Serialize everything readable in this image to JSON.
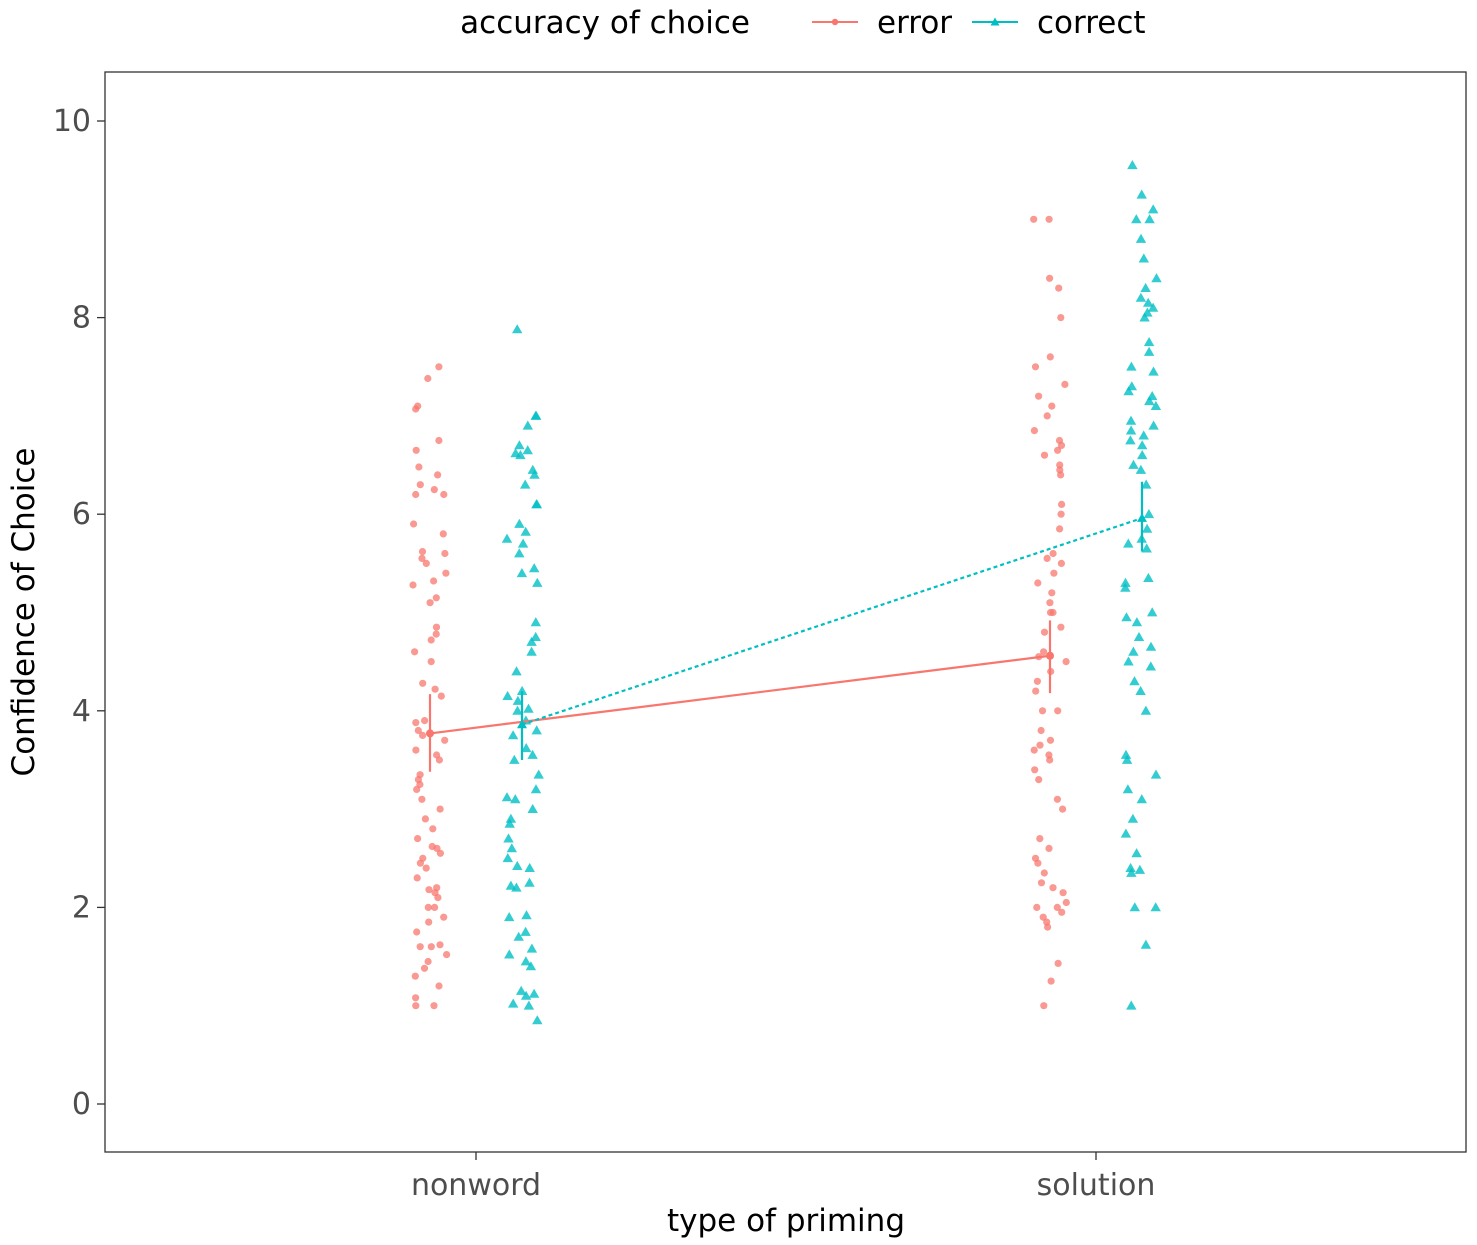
{
  "chart_data": {
    "type": "scatter",
    "xlabel": "type of priming",
    "ylabel": "Confidence of Choice",
    "categories": [
      "nonword",
      "solution"
    ],
    "ylim": [
      -0.35,
      10.5
    ],
    "yticks": [
      0,
      2,
      4,
      6,
      8,
      10
    ],
    "grid": false,
    "legend": {
      "title": "accuracy of choice",
      "placement": "top",
      "entries": [
        "error",
        "correct"
      ]
    },
    "series": [
      {
        "name": "error",
        "color": "#F8766D",
        "marker": "circle",
        "line_style": "solid",
        "means": [
          3.77,
          4.56
        ],
        "ci_low": [
          3.38,
          4.18
        ],
        "ci_high": [
          4.17,
          4.92
        ],
        "points": {
          "nonword": [
            1.0,
            1.0,
            1.08,
            1.2,
            1.3,
            1.38,
            1.45,
            1.52,
            1.6,
            1.6,
            1.62,
            1.75,
            1.85,
            1.9,
            2.0,
            2.0,
            2.1,
            2.15,
            2.18,
            2.2,
            2.3,
            2.4,
            2.45,
            2.5,
            2.55,
            2.6,
            2.62,
            2.7,
            2.8,
            2.9,
            3.0,
            3.1,
            3.2,
            3.25,
            3.3,
            3.35,
            3.5,
            3.55,
            3.6,
            3.7,
            3.75,
            3.8,
            3.88,
            3.9,
            4.15,
            4.22,
            4.28,
            4.5,
            4.6,
            4.72,
            4.78,
            4.85,
            5.1,
            5.15,
            5.28,
            5.32,
            5.4,
            5.5,
            5.55,
            5.6,
            5.62,
            5.8,
            5.9,
            6.2,
            6.2,
            6.25,
            6.3,
            6.4,
            6.48,
            6.65,
            6.75,
            7.07,
            7.1,
            7.38,
            7.5
          ],
          "solution": [
            1.0,
            1.25,
            1.43,
            1.8,
            1.85,
            1.9,
            1.95,
            2.0,
            2.0,
            2.05,
            2.15,
            2.2,
            2.25,
            2.35,
            2.45,
            2.5,
            2.6,
            2.7,
            3.0,
            3.1,
            3.3,
            3.4,
            3.5,
            3.55,
            3.6,
            3.65,
            3.7,
            3.8,
            4.0,
            4.0,
            4.2,
            4.3,
            4.4,
            4.5,
            4.55,
            4.6,
            4.8,
            4.85,
            5.0,
            5.0,
            5.1,
            5.2,
            5.3,
            5.4,
            5.5,
            5.55,
            5.6,
            5.85,
            6.0,
            6.1,
            6.4,
            6.45,
            6.5,
            6.6,
            6.65,
            6.7,
            6.75,
            6.85,
            7.0,
            7.1,
            7.2,
            7.32,
            7.5,
            7.6,
            8.0,
            8.3,
            8.4,
            9.0,
            9.0
          ]
        }
      },
      {
        "name": "correct",
        "color": "#00BFC4",
        "marker": "triangle",
        "line_style": "dotted",
        "means": [
          3.86,
          5.96
        ],
        "ci_low": [
          3.5,
          5.62
        ],
        "ci_high": [
          4.2,
          6.33
        ],
        "points": {
          "nonword": [
            0.85,
            1.0,
            1.02,
            1.1,
            1.12,
            1.15,
            1.4,
            1.45,
            1.52,
            1.58,
            1.7,
            1.75,
            1.9,
            1.92,
            2.2,
            2.22,
            2.25,
            2.4,
            2.42,
            2.5,
            2.6,
            2.7,
            2.85,
            2.9,
            3.0,
            3.1,
            3.12,
            3.2,
            3.35,
            3.5,
            3.55,
            3.62,
            3.75,
            3.8,
            3.9,
            4.0,
            4.02,
            4.1,
            4.15,
            4.2,
            4.4,
            4.6,
            4.7,
            4.75,
            4.9,
            5.3,
            5.4,
            5.45,
            5.6,
            5.7,
            5.75,
            5.82,
            5.9,
            6.1,
            6.1,
            6.3,
            6.4,
            6.45,
            6.6,
            6.62,
            6.65,
            6.7,
            6.9,
            7.0,
            7.0,
            7.88
          ],
          "solution": [
            1.0,
            1.62,
            2.0,
            2.0,
            2.35,
            2.38,
            2.4,
            2.55,
            2.75,
            2.9,
            3.1,
            3.2,
            3.35,
            3.5,
            3.55,
            4.0,
            4.2,
            4.3,
            4.45,
            4.5,
            4.6,
            4.65,
            4.75,
            4.9,
            4.95,
            5.0,
            5.25,
            5.3,
            5.35,
            5.65,
            5.7,
            5.75,
            5.85,
            6.0,
            6.3,
            6.45,
            6.5,
            6.6,
            6.7,
            6.75,
            6.8,
            6.85,
            6.9,
            6.95,
            7.1,
            7.15,
            7.2,
            7.25,
            7.3,
            7.45,
            7.5,
            7.65,
            7.75,
            8.0,
            8.05,
            8.1,
            8.15,
            8.2,
            8.3,
            8.4,
            8.6,
            8.8,
            9.0,
            9.0,
            9.1,
            9.25,
            9.55
          ]
        }
      }
    ]
  }
}
